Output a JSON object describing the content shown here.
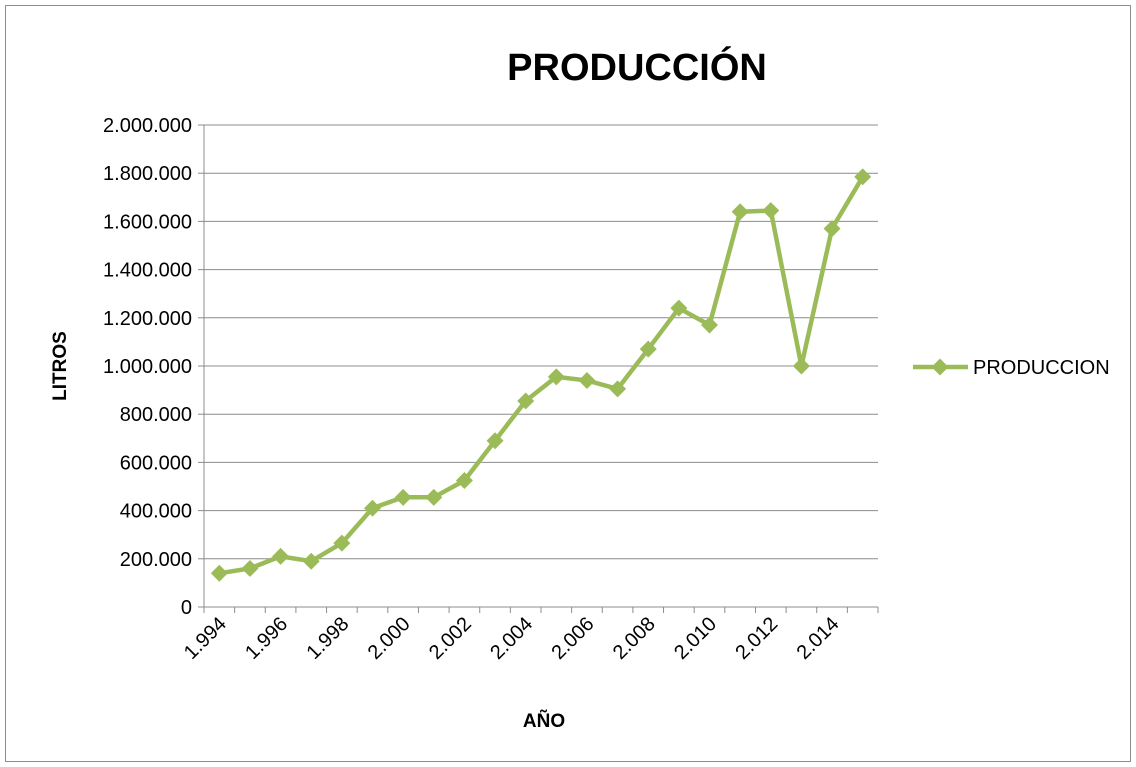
{
  "chart_data": {
    "type": "line",
    "title": "PRODUCCIÓN",
    "xlabel": "AÑO",
    "ylabel": "LITROS",
    "x": [
      1994,
      1995,
      1996,
      1997,
      1998,
      1999,
      2000,
      2001,
      2002,
      2003,
      2004,
      2005,
      2006,
      2007,
      2008,
      2009,
      2010,
      2011,
      2012,
      2013,
      2014,
      2015
    ],
    "x_tick_labels": [
      "1.994",
      "1.996",
      "1.998",
      "2.000",
      "2.002",
      "2.004",
      "2.006",
      "2.008",
      "2.010",
      "2.012",
      "2.014"
    ],
    "y_tick_labels": [
      "0",
      "200.000",
      "400.000",
      "600.000",
      "800.000",
      "1.000.000",
      "1.200.000",
      "1.400.000",
      "1.600.000",
      "1.800.000",
      "2.000.000"
    ],
    "ylim": [
      0,
      2000000
    ],
    "grid": true,
    "legend_position": "right",
    "series": [
      {
        "name": "PRODUCCION",
        "color": "#9bbb59",
        "values": [
          140000,
          160000,
          210000,
          190000,
          265000,
          410000,
          455000,
          455000,
          525000,
          690000,
          855000,
          955000,
          940000,
          905000,
          1070000,
          1240000,
          1170000,
          1640000,
          1645000,
          1000000,
          1570000,
          1785000
        ]
      }
    ]
  }
}
